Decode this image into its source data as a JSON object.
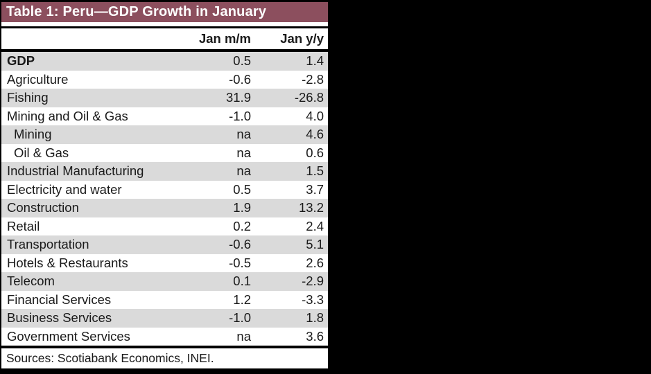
{
  "table": {
    "title": "Table 1: Peru—GDP Growth in January",
    "columns": [
      {
        "label": "Jan m/m"
      },
      {
        "label": "Jan y/y"
      }
    ],
    "rows": [
      {
        "label": "GDP",
        "jan_mm": "0.5",
        "jan_yy": "1.4",
        "bold": true,
        "indent": false
      },
      {
        "label": "Agriculture",
        "jan_mm": "-0.6",
        "jan_yy": "-2.8",
        "bold": false,
        "indent": false
      },
      {
        "label": "Fishing",
        "jan_mm": "31.9",
        "jan_yy": "-26.8",
        "bold": false,
        "indent": false
      },
      {
        "label": "Mining and Oil & Gas",
        "jan_mm": "-1.0",
        "jan_yy": "4.0",
        "bold": false,
        "indent": false
      },
      {
        "label": "Mining",
        "jan_mm": "na",
        "jan_yy": "4.6",
        "bold": false,
        "indent": true
      },
      {
        "label": "Oil & Gas",
        "jan_mm": "na",
        "jan_yy": "0.6",
        "bold": false,
        "indent": true
      },
      {
        "label": "Industrial Manufacturing",
        "jan_mm": "na",
        "jan_yy": "1.5",
        "bold": false,
        "indent": false
      },
      {
        "label": "Electricity and water",
        "jan_mm": "0.5",
        "jan_yy": "3.7",
        "bold": false,
        "indent": false
      },
      {
        "label": "Construction",
        "jan_mm": "1.9",
        "jan_yy": "13.2",
        "bold": false,
        "indent": false
      },
      {
        "label": "Retail",
        "jan_mm": "0.2",
        "jan_yy": "2.4",
        "bold": false,
        "indent": false
      },
      {
        "label": "Transportation",
        "jan_mm": "-0.6",
        "jan_yy": "5.1",
        "bold": false,
        "indent": false
      },
      {
        "label": "Hotels & Restaurants",
        "jan_mm": "-0.5",
        "jan_yy": "2.6",
        "bold": false,
        "indent": false
      },
      {
        "label": "Telecom",
        "jan_mm": "0.1",
        "jan_yy": "-2.9",
        "bold": false,
        "indent": false
      },
      {
        "label": "Financial Services",
        "jan_mm": "1.2",
        "jan_yy": "-3.3",
        "bold": false,
        "indent": false
      },
      {
        "label": "Business Services",
        "jan_mm": "-1.0",
        "jan_yy": "1.8",
        "bold": false,
        "indent": false
      },
      {
        "label": "Government Services",
        "jan_mm": "na",
        "jan_yy": "3.6",
        "bold": false,
        "indent": false
      }
    ],
    "source": "Sources: Scotiabank Economics, INEI.",
    "colors": {
      "title_bg": "#8C4F5E",
      "title_text": "#FFFFFF",
      "stripe_bg": "#DADADA",
      "row_bg": "#FFFFFF",
      "text": "#1A1A1A",
      "border": "#000000",
      "page_bg": "#000000"
    }
  }
}
